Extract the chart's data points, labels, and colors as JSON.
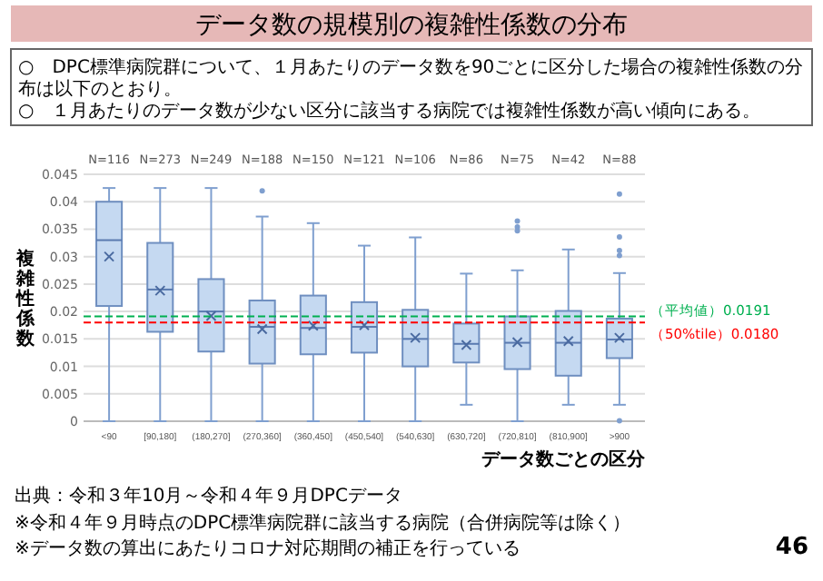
{
  "chart_data": {
    "type": "box",
    "title": "データ数の規模別の複雑性係数の分布",
    "xlabel": "データ数ごとの区分",
    "ylabel": "複雑性係数",
    "categories": [
      "<90",
      "[90,180]",
      "(180,270]",
      "(270,360]",
      "(360,450]",
      "(450,540]",
      "(540,630]",
      "(630,720]",
      "(720,810]",
      "(810,900]",
      ">900"
    ],
    "boxes": [
      {
        "low": 0,
        "q1": 0.021,
        "median": 0.033,
        "q3": 0.04,
        "high": 0.0425,
        "mean": 0.03
      },
      {
        "low": 0,
        "q1": 0.0163,
        "median": 0.024,
        "q3": 0.0325,
        "high": 0.0425,
        "mean": 0.0238
      },
      {
        "low": 0,
        "q1": 0.0127,
        "median": 0.02,
        "q3": 0.0259,
        "high": 0.0425,
        "mean": 0.0192
      },
      {
        "low": 0,
        "q1": 0.0105,
        "median": 0.0172,
        "q3": 0.022,
        "high": 0.0373,
        "mean": 0.0168,
        "outliers": [
          0.042
        ]
      },
      {
        "low": 0,
        "q1": 0.0122,
        "median": 0.017,
        "q3": 0.0229,
        "high": 0.0361,
        "mean": 0.0174
      },
      {
        "low": 0,
        "q1": 0.0125,
        "median": 0.0172,
        "q3": 0.0217,
        "high": 0.032,
        "mean": 0.0175
      },
      {
        "low": 0,
        "q1": 0.01,
        "median": 0.015,
        "q3": 0.0203,
        "high": 0.0335,
        "mean": 0.0152
      },
      {
        "low": 0.003,
        "q1": 0.0107,
        "median": 0.0141,
        "q3": 0.0178,
        "high": 0.0269,
        "mean": 0.0139
      },
      {
        "low": 0,
        "q1": 0.0095,
        "median": 0.0143,
        "q3": 0.0191,
        "high": 0.0275,
        "mean": 0.0144,
        "outliers": [
          0.0347,
          0.0354,
          0.0365
        ]
      },
      {
        "low": 0.003,
        "q1": 0.0083,
        "median": 0.0143,
        "q3": 0.0201,
        "high": 0.0313,
        "mean": 0.0146
      },
      {
        "low": 0.003,
        "q1": 0.0115,
        "median": 0.0149,
        "q3": 0.0187,
        "high": 0.027,
        "mean": 0.0152,
        "outliers": [
          0.0001,
          0.0302,
          0.0311,
          0.0336,
          0.0414
        ]
      }
    ],
    "color": "#c5d9f1",
    "ylim": [
      0,
      0.045
    ],
    "yticks": [
      0,
      0.005,
      0.01,
      0.015,
      0.02,
      0.025,
      0.03,
      0.035,
      0.04,
      0.045
    ],
    "grid": "y",
    "marker": "cross",
    "ref_lines": [
      {
        "axis": "y",
        "value": 0.0191,
        "label": "（平均値）0.0191",
        "color": "#00b050",
        "line_style": "dashed"
      },
      {
        "axis": "y",
        "value": 0.018,
        "label": "（50%tile）0.0180",
        "color": "#ff0000",
        "line_style": "dashed"
      }
    ],
    "annotations": [
      "○　DPC標準病院群について、１月あたりのデータ数を90ごとに区分した場合の複雑性係数の分布は以下のとおり。",
      "○　１月あたりのデータ数が少ない区分に該当する病院では複雑性係数が高い傾向にある。",
      "出典：令和３年10月～令和４年９月DPCデータ",
      "※令和４年９月時点のDPC標準病院群に該当する病院（合併病院等は除く）",
      "※データ数の算出にあたりコロナ対応期間の補正を行っている",
      "46",
      "N=116",
      "N=273",
      "N=249",
      "N=188",
      "N=150",
      "N=121",
      "N=106",
      "N=86",
      "N=75",
      "N=42",
      "N=88"
    ]
  }
}
